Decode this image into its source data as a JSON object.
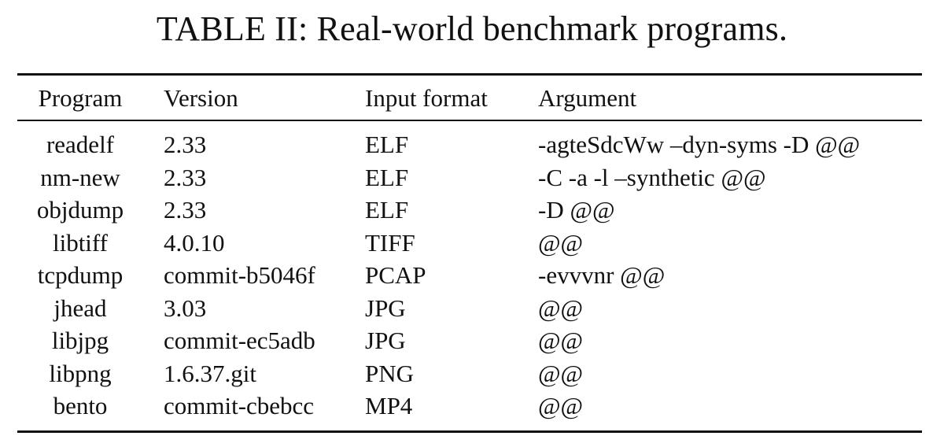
{
  "caption": "TABLE II: Real-world benchmark programs.",
  "table": {
    "headers": [
      "Program",
      "Version",
      "Input format",
      "Argument"
    ],
    "rows": [
      [
        "readelf",
        "2.33",
        "ELF",
        "-agteSdcWw –dyn-syms -D @@"
      ],
      [
        "nm-new",
        "2.33",
        "ELF",
        "-C -a -l –synthetic @@"
      ],
      [
        "objdump",
        "2.33",
        "ELF",
        "-D @@"
      ],
      [
        "libtiff",
        "4.0.10",
        "TIFF",
        "@@"
      ],
      [
        "tcpdump",
        "commit-b5046f",
        "PCAP",
        "-evvvnr @@"
      ],
      [
        "jhead",
        "3.03",
        "JPG",
        "@@"
      ],
      [
        "libjpg",
        "commit-ec5adb",
        "JPG",
        "@@"
      ],
      [
        "libpng",
        "1.6.37.git",
        "PNG",
        "@@"
      ],
      [
        "bento",
        "commit-cbebcc",
        "MP4",
        "@@"
      ]
    ]
  }
}
